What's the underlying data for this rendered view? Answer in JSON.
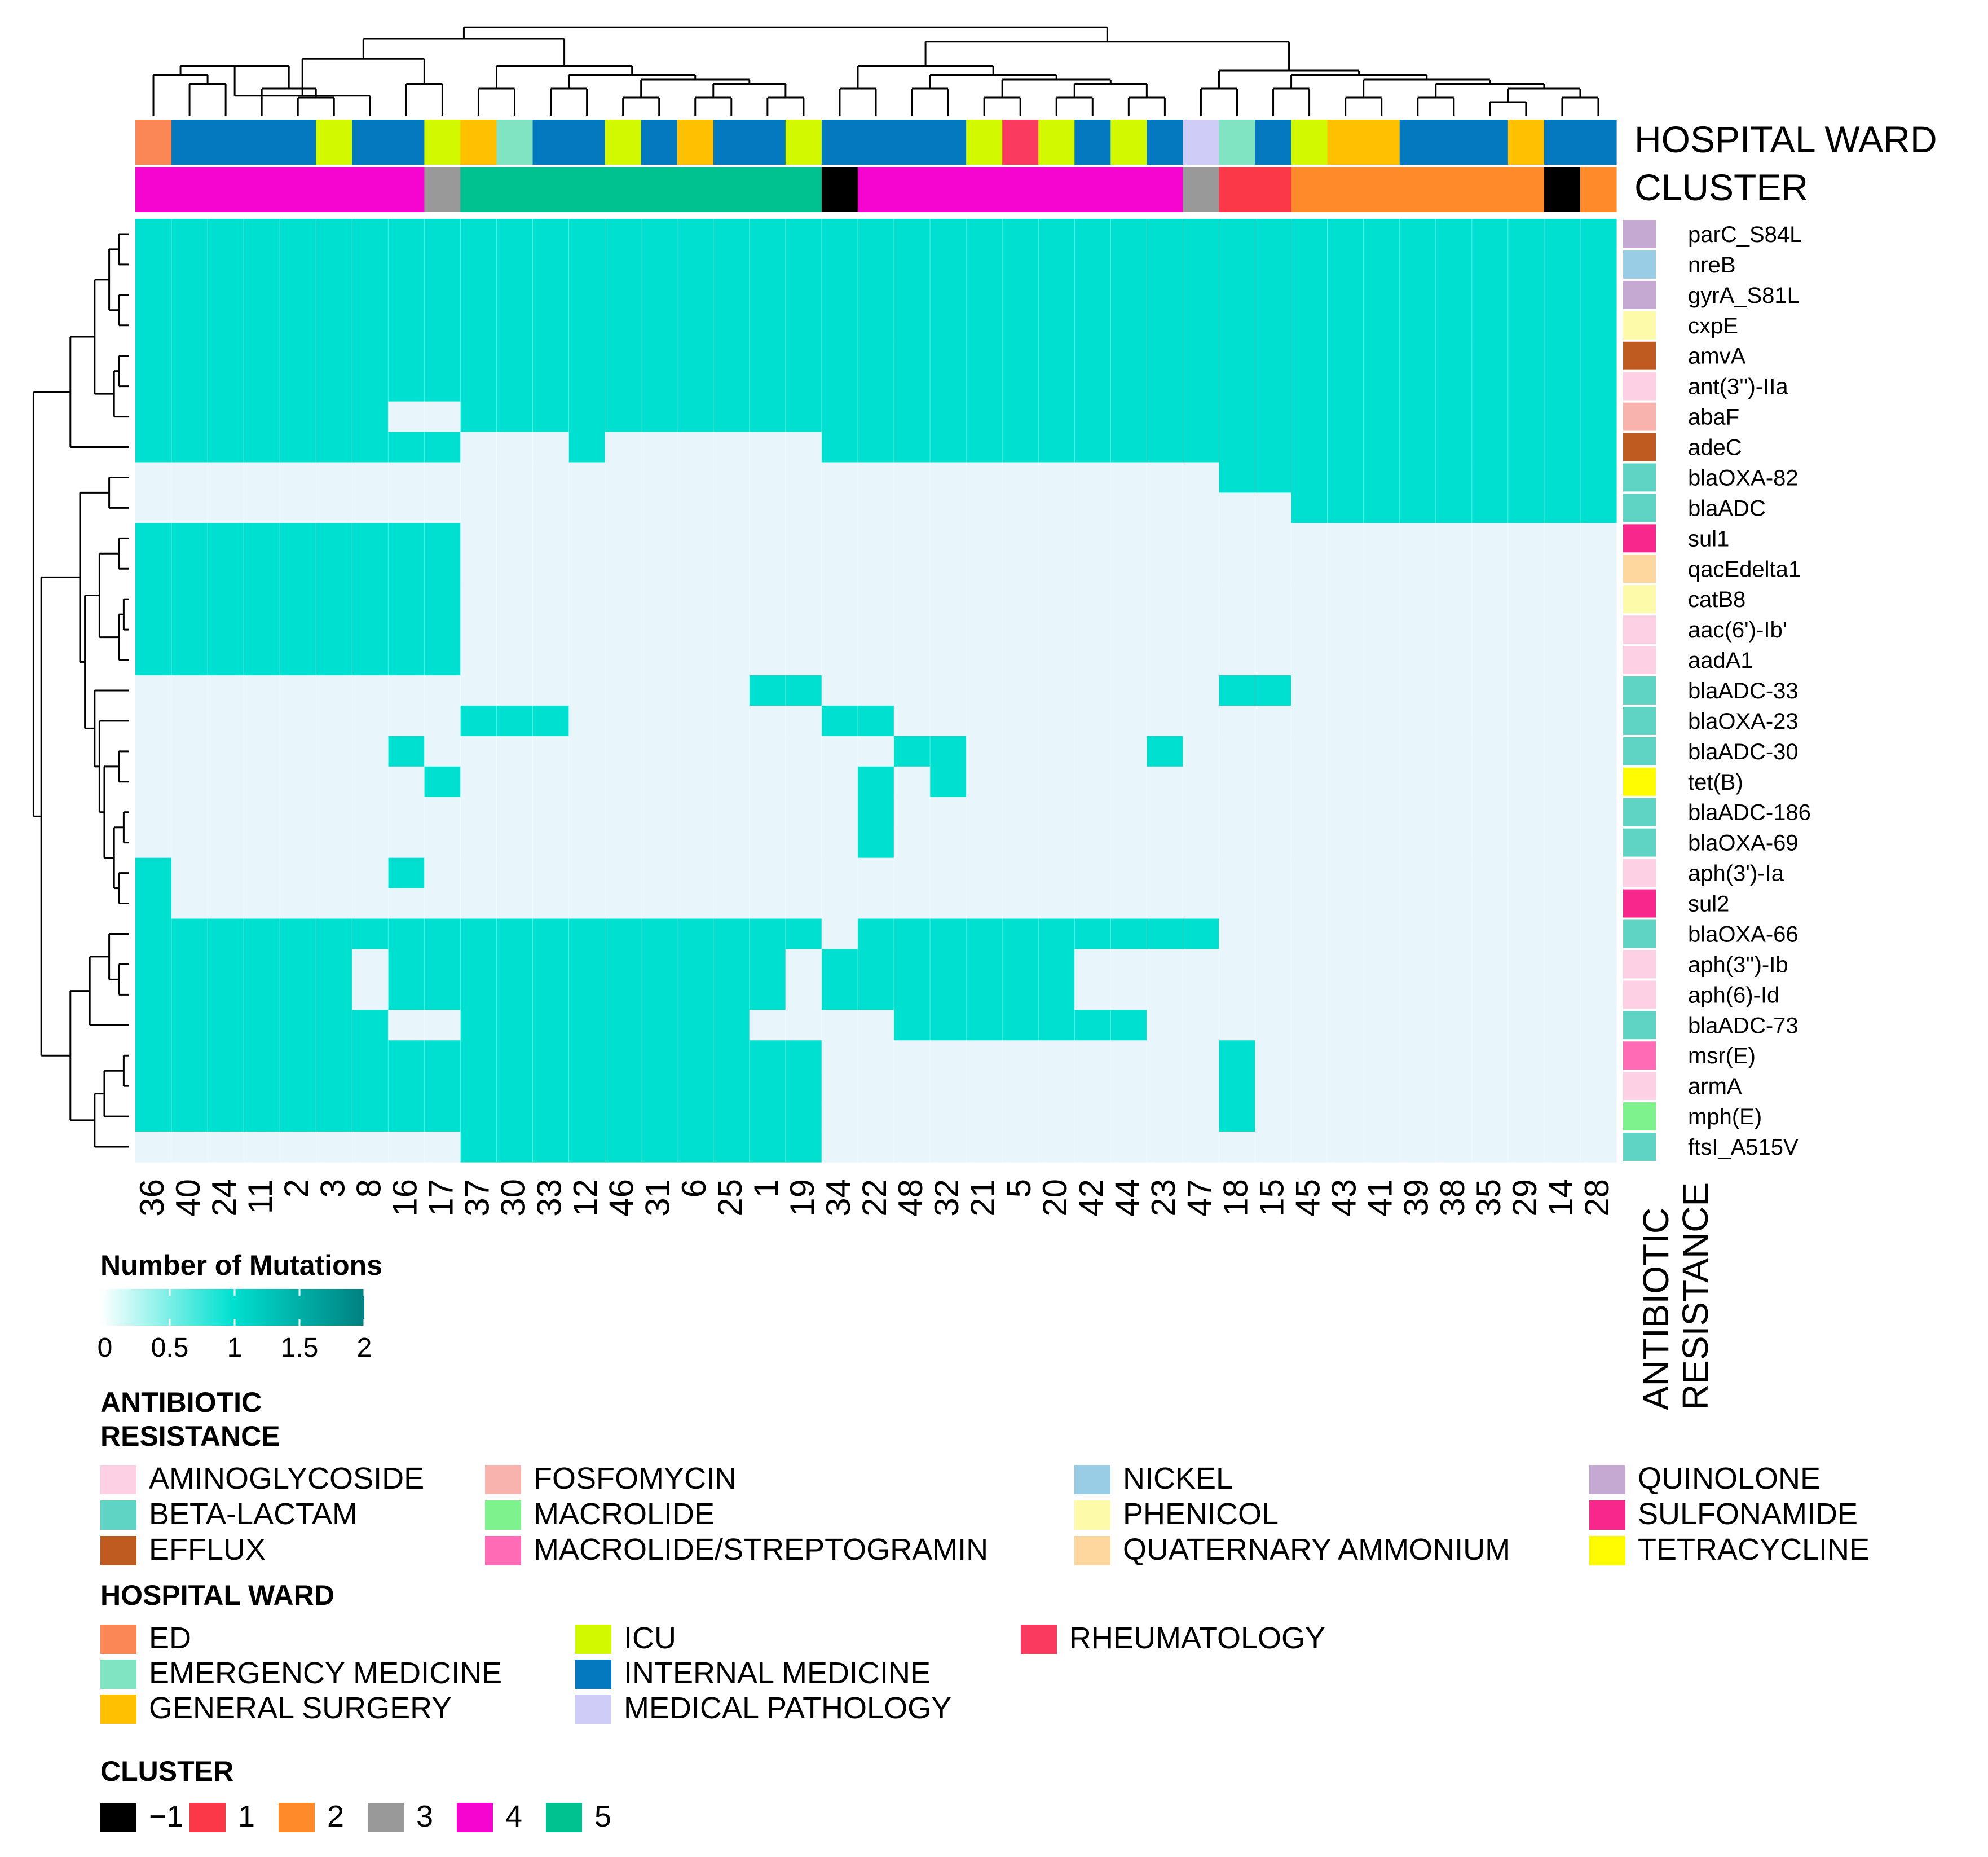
{
  "chart_data": {
    "type": "heatmap",
    "columns": [
      "36",
      "40",
      "24",
      "11",
      "2",
      "3",
      "8",
      "16",
      "17",
      "37",
      "30",
      "33",
      "12",
      "46",
      "31",
      "6",
      "25",
      "1",
      "19",
      "34",
      "22",
      "48",
      "32",
      "21",
      "5",
      "20",
      "42",
      "44",
      "23",
      "47",
      "18",
      "15",
      "45",
      "43",
      "41",
      "39",
      "38",
      "35",
      "29",
      "14",
      "28"
    ],
    "rows": [
      "parC_S84L",
      "nreB",
      "gyrA_S81L",
      "cxpE",
      "amvA",
      "ant(3'')-IIa",
      "abaF",
      "adeC",
      "blaOXA-82",
      "blaADC",
      "sul1",
      "qacEdelta1",
      "catB8",
      "aac(6')-Ib'",
      "aadA1",
      "blaADC-33",
      "blaOXA-23",
      "blaADC-30",
      "tet(B)",
      "blaADC-186",
      "blaOXA-69",
      "aph(3')-Ia",
      "sul2",
      "blaOXA-66",
      "aph(3'')-Ib",
      "aph(6)-Id",
      "blaADC-73",
      "msr(E)",
      "armA",
      "mph(E)",
      "ftsI_A515V"
    ],
    "row_class": [
      "QUINOLONE",
      "NICKEL",
      "QUINOLONE",
      "PHENICOL",
      "EFFLUX",
      "AMINOGLYCOSIDE",
      "FOSFOMYCIN",
      "EFFLUX",
      "BETA-LACTAM",
      "BETA-LACTAM",
      "SULFONAMIDE",
      "QUATERNARY AMMONIUM",
      "PHENICOL",
      "AMINOGLYCOSIDE",
      "AMINOGLYCOSIDE",
      "BETA-LACTAM",
      "BETA-LACTAM",
      "BETA-LACTAM",
      "TETRACYCLINE",
      "BETA-LACTAM",
      "BETA-LACTAM",
      "AMINOGLYCOSIDE",
      "SULFONAMIDE",
      "BETA-LACTAM",
      "AMINOGLYCOSIDE",
      "AMINOGLYCOSIDE",
      "BETA-LACTAM",
      "MACROLIDE/STREPTOGRAMIN",
      "AMINOGLYCOSIDE",
      "MACROLIDE",
      "BETA-LACTAM"
    ],
    "values": [
      "11111111111111111111111111111111111111111",
      "11111111111111111111111111111111111111111",
      "11111111111111111111111111111111111111111",
      "11111111111111111111111111111111111111111",
      "11111111111111111111111111111111111111111",
      "11111111111111111111111111111111111111111",
      "11111110011111111111111111111111111111111",
      "11111111100010000001111111111111111111111",
      "00000000000000000000000000000011111111111",
      "00000000000000000000000000000000111111111",
      "11111111100000000000000000000000000000000",
      "11111111100000000000000000000000000000000",
      "11111111100000000000000000000000000000000",
      "11111111100000000000000000000000000000000",
      "11111111100000000000000000000000000000000",
      "00000000000000000110000000000011000000000",
      "00000000011100000001100000000000000000000",
      "00000001000000000000011000001000000000000",
      "00000000100000000000101000000000000000000",
      "00000000000000000000100000000000000000000",
      "00000000000000000000100000000000000000000",
      "10000001000000000000000000000000000000000",
      "10000000000000000000000000000000000000000",
      "11111111111111111110111111111100000000000",
      "11111101111111111101111111000000000000000",
      "11111101111111111101111111000000000000000",
      "11111110011111111000011111110000000000000",
      "11111111111111111110000000000010000000000",
      "11111111111111111110000000000010000000000",
      "11111111111111111110000000000010000000000",
      "00000000011111111110000000000000000000000"
    ],
    "hospital_ward": [
      "ED",
      "INTERNAL MEDICINE",
      "INTERNAL MEDICINE",
      "INTERNAL MEDICINE",
      "INTERNAL MEDICINE",
      "ICU",
      "INTERNAL MEDICINE",
      "INTERNAL MEDICINE",
      "ICU",
      "GENERAL SURGERY",
      "EMERGENCY MEDICINE",
      "INTERNAL MEDICINE",
      "INTERNAL MEDICINE",
      "ICU",
      "INTERNAL MEDICINE",
      "GENERAL SURGERY",
      "INTERNAL MEDICINE",
      "INTERNAL MEDICINE",
      "ICU",
      "INTERNAL MEDICINE",
      "INTERNAL MEDICINE",
      "INTERNAL MEDICINE",
      "INTERNAL MEDICINE",
      "ICU",
      "RHEUMATOLOGY",
      "ICU",
      "INTERNAL MEDICINE",
      "ICU",
      "INTERNAL MEDICINE",
      "MEDICAL PATHOLOGY",
      "EMERGENCY MEDICINE",
      "INTERNAL MEDICINE",
      "ICU",
      "GENERAL SURGERY",
      "GENERAL SURGERY",
      "INTERNAL MEDICINE",
      "INTERNAL MEDICINE",
      "INTERNAL MEDICINE",
      "GENERAL SURGERY",
      "INTERNAL MEDICINE",
      "INTERNAL MEDICINE"
    ],
    "cluster": [
      "4",
      "4",
      "4",
      "4",
      "4",
      "4",
      "4",
      "4",
      "3",
      "5",
      "5",
      "5",
      "5",
      "5",
      "5",
      "5",
      "5",
      "5",
      "5",
      "−1",
      "4",
      "4",
      "4",
      "4",
      "4",
      "4",
      "4",
      "4",
      "4",
      "3",
      "1",
      "1",
      "2",
      "2",
      "2",
      "2",
      "2",
      "2",
      "2",
      "−1",
      "2"
    ],
    "annotation_titles": [
      "HOSPITAL WARD",
      "CLUSTER",
      "ANTIBIOTIC RESISTANCE"
    ],
    "colorbar": {
      "title": "Number of Mutations",
      "ticks": [
        "0",
        "0.5",
        "1",
        "1.5",
        "2"
      ],
      "range": [
        0,
        2
      ]
    },
    "legends": {
      "antibiotic_title": "ANTIBIOTIC RESISTANCE",
      "antibiotic": [
        {
          "label": "AMINOGLYCOSIDE",
          "color": "#fdd0e3"
        },
        {
          "label": "BETA-LACTAM",
          "color": "#5fd4c4"
        },
        {
          "label": "EFFLUX",
          "color": "#bf5b20"
        },
        {
          "label": "FOSFOMYCIN",
          "color": "#f8b3ae"
        },
        {
          "label": "MACROLIDE",
          "color": "#7df28d"
        },
        {
          "label": "MACROLIDE/STREPTOGRAMIN",
          "color": "#ff6cb5"
        },
        {
          "label": "NICKEL",
          "color": "#99cde6"
        },
        {
          "label": "PHENICOL",
          "color": "#fdfaaa"
        },
        {
          "label": "QUATERNARY AMMONIUM",
          "color": "#fdd79e"
        },
        {
          "label": "QUINOLONE",
          "color": "#c5a9d2"
        },
        {
          "label": "SULFONAMIDE",
          "color": "#f7278c"
        },
        {
          "label": "TETRACYCLINE",
          "color": "#fffb00"
        }
      ],
      "ward_title": "HOSPITAL WARD",
      "ward": [
        {
          "label": "ED",
          "color": "#fb8656"
        },
        {
          "label": "EMERGENCY MEDICINE",
          "color": "#80e3c2"
        },
        {
          "label": "GENERAL SURGERY",
          "color": "#fec000"
        },
        {
          "label": "ICU",
          "color": "#d3f900"
        },
        {
          "label": "INTERNAL MEDICINE",
          "color": "#0479bf"
        },
        {
          "label": "MEDICAL PATHOLOGY",
          "color": "#cfcdf7"
        },
        {
          "label": "RHEUMATOLOGY",
          "color": "#fa3a5e"
        }
      ],
      "cluster_title": "CLUSTER",
      "cluster": [
        {
          "label": "−1",
          "color": "#000000"
        },
        {
          "label": "1",
          "color": "#fb3847"
        },
        {
          "label": "2",
          "color": "#ff8a29"
        },
        {
          "label": "3",
          "color": "#999999"
        },
        {
          "label": "4",
          "color": "#f505cf"
        },
        {
          "label": "5",
          "color": "#00c290"
        }
      ]
    },
    "colors": {
      "high": "#00e0d0",
      "low": "#e8f6fb",
      "max": "#008080"
    }
  }
}
